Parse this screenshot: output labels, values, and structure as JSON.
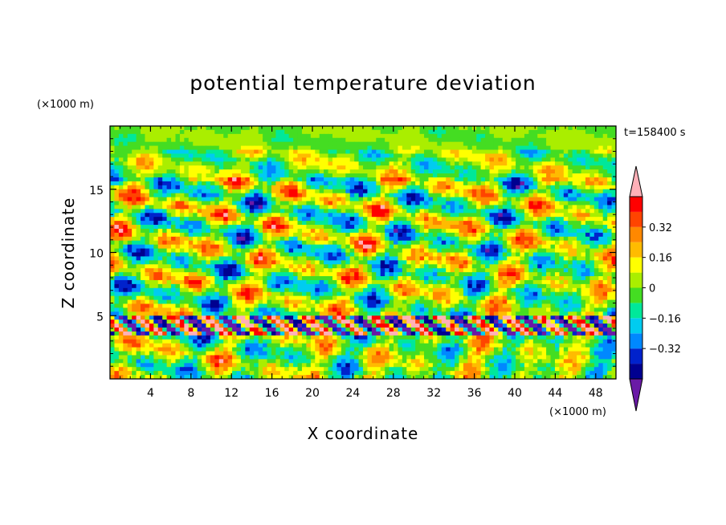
{
  "chart_data": {
    "type": "heatmap",
    "title": "potential temperature deviation",
    "xlabel": "X coordinate",
    "ylabel": "Z coordinate",
    "x_unit": "(×1000 m)",
    "y_unit": "(×1000 m)",
    "time_label": "t=158400 s",
    "xlim": [
      0,
      50
    ],
    "ylim": [
      0,
      20
    ],
    "x_ticks": [
      4,
      8,
      12,
      16,
      20,
      24,
      28,
      32,
      36,
      40,
      44,
      48
    ],
    "x_tick_labels": [
      "4",
      "8",
      "12",
      "16",
      "20",
      "24",
      "28",
      "32",
      "36",
      "40",
      "44",
      "48"
    ],
    "y_ticks": [
      5,
      10,
      15
    ],
    "y_tick_labels": [
      "5",
      "10",
      "15"
    ],
    "colorbar": {
      "levels": [
        -0.48,
        -0.4,
        -0.32,
        -0.24,
        -0.16,
        -0.08,
        0,
        0.08,
        0.16,
        0.24,
        0.32,
        0.4,
        0.48
      ],
      "tick_values": [
        0.32,
        0.16,
        0,
        -0.16,
        -0.32
      ],
      "tick_labels": [
        "0.32",
        "0.16",
        "0",
        "−0.16",
        "−0.32"
      ],
      "colors": [
        "#6a1aa6",
        "#000090",
        "#0022cc",
        "#0088ff",
        "#00ccf0",
        "#00e89a",
        "#44dd22",
        "#aaee00",
        "#ffff00",
        "#ffbb00",
        "#ff8800",
        "#ff4400",
        "#ff0000",
        "#ffb0b8"
      ],
      "extend": "both"
    },
    "grid": false
  }
}
